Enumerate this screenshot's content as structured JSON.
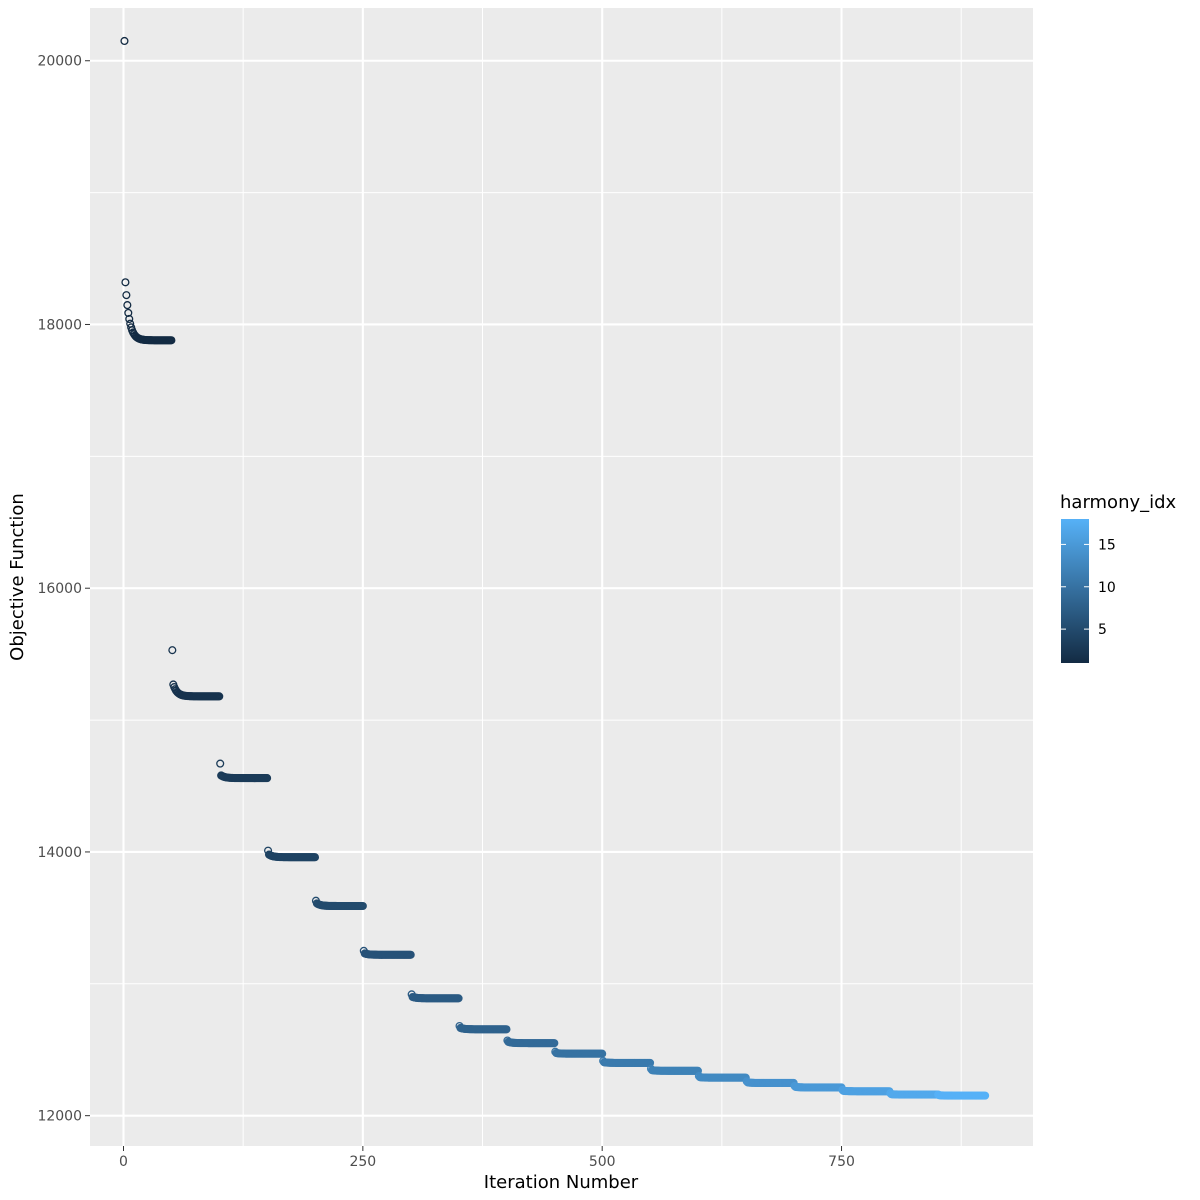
{
  "chart_data": {
    "type": "scatter",
    "title": "",
    "xlabel": "Iteration Number",
    "ylabel": "Objective Function",
    "xlim": [
      -35,
      950
    ],
    "ylim": [
      11770,
      20400
    ],
    "x_major_ticks": [
      0,
      250,
      500,
      750
    ],
    "x_minor_ticks": [
      125,
      375,
      625,
      875
    ],
    "y_major_ticks": [
      12000,
      14000,
      16000,
      18000,
      20000
    ],
    "y_minor_ticks": [
      13000,
      15000,
      17000,
      19000
    ],
    "x_tick_labels": [
      "0",
      "250",
      "500",
      "750"
    ],
    "y_tick_labels": [
      "12000",
      "14000",
      "16000",
      "18000",
      "20000"
    ],
    "grid": true,
    "legend": {
      "title": "harmony_idx",
      "placement": "right",
      "range": [
        1,
        18
      ],
      "ticks": [
        5,
        10,
        15
      ],
      "tick_labels": [
        "5",
        "10",
        "15"
      ],
      "low_color": "#132B43",
      "high_color": "#56B1F7"
    },
    "blocks_per_harmony": 50,
    "series": [
      {
        "harmony_idx": 1,
        "start": 20150,
        "second": 18320,
        "plateau": 17880
      },
      {
        "harmony_idx": 2,
        "start": 15530,
        "second": 15270,
        "plateau": 15180
      },
      {
        "harmony_idx": 3,
        "start": 14670,
        "second": 14580,
        "plateau": 14560
      },
      {
        "harmony_idx": 4,
        "start": 14010,
        "second": 13980,
        "plateau": 13960
      },
      {
        "harmony_idx": 5,
        "start": 13630,
        "second": 13610,
        "plateau": 13590
      },
      {
        "harmony_idx": 6,
        "start": 13250,
        "second": 13230,
        "plateau": 13220
      },
      {
        "harmony_idx": 7,
        "start": 12920,
        "second": 12900,
        "plateau": 12890
      },
      {
        "harmony_idx": 8,
        "start": 12680,
        "second": 12665,
        "plateau": 12655
      },
      {
        "harmony_idx": 9,
        "start": 12570,
        "second": 12560,
        "plateau": 12550
      },
      {
        "harmony_idx": 10,
        "start": 12485,
        "second": 12475,
        "plateau": 12470
      },
      {
        "harmony_idx": 11,
        "start": 12415,
        "second": 12405,
        "plateau": 12400
      },
      {
        "harmony_idx": 12,
        "start": 12355,
        "second": 12345,
        "plateau": 12340
      },
      {
        "harmony_idx": 13,
        "start": 12300,
        "second": 12292,
        "plateau": 12288
      },
      {
        "harmony_idx": 14,
        "start": 12260,
        "second": 12252,
        "plateau": 12248
      },
      {
        "harmony_idx": 15,
        "start": 12225,
        "second": 12218,
        "plateau": 12214
      },
      {
        "harmony_idx": 16,
        "start": 12195,
        "second": 12188,
        "plateau": 12185
      },
      {
        "harmony_idx": 17,
        "start": 12170,
        "second": 12163,
        "plateau": 12160
      },
      {
        "harmony_idx": 18,
        "start": 12160,
        "second": 12155,
        "plateau": 12152
      }
    ]
  }
}
